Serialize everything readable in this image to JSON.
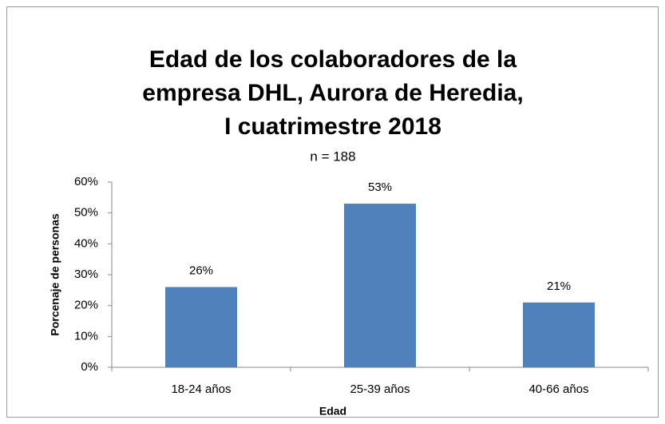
{
  "chart_data": {
    "type": "bar",
    "title": [
      "Edad de los colaboradores de la",
      "empresa DHL, Aurora de Heredia,",
      "I cuatrimestre 2018"
    ],
    "subtitle": "n = 188",
    "x_label": "Edad",
    "y_label": "Porcenaje de personas",
    "categories": [
      "18-24 años",
      "25-39 años",
      "40-66 años"
    ],
    "values": [
      26,
      53,
      21
    ],
    "value_labels": [
      "26%",
      "53%",
      "21%"
    ],
    "color": "#4f81bd",
    "ylim": [
      0,
      60
    ],
    "yticks": [
      {
        "value": 0,
        "label": "0%"
      },
      {
        "value": 10,
        "label": "10%"
      },
      {
        "value": 20,
        "label": "20%"
      },
      {
        "value": 30,
        "label": "30%"
      },
      {
        "value": 40,
        "label": "40%"
      },
      {
        "value": 50,
        "label": "50%"
      },
      {
        "value": 60,
        "label": "60%"
      }
    ],
    "grid": false
  }
}
